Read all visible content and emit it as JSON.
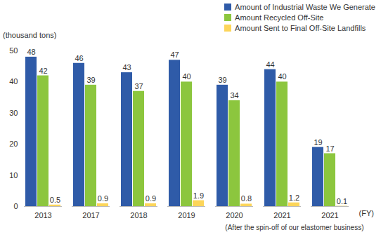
{
  "chart_data": {
    "type": "bar",
    "y_label": "(thousand tons)",
    "x_label": "(FY)",
    "categories": [
      "2013",
      "2017",
      "2018",
      "2019",
      "2020",
      "2021",
      "2021"
    ],
    "series": [
      {
        "name": "Amount of Industrial Waste We Generate",
        "color": "#2f5ba8",
        "values": [
          48,
          46,
          43,
          47,
          39,
          44,
          19
        ]
      },
      {
        "name": "Amount Recycled Off-Site",
        "color": "#8cc63e",
        "values": [
          42,
          39,
          37,
          40,
          34,
          40,
          17
        ]
      },
      {
        "name": "Amount Sent to Final Off-Site Landfills",
        "color": "#fcd55a",
        "values": [
          0.5,
          0.9,
          0.9,
          1.9,
          0.8,
          1.2,
          0.1
        ]
      }
    ],
    "annotations": [
      {
        "text": "(After the spin-off of our elastomer business)",
        "x": 6
      }
    ],
    "ylim": [
      0,
      50
    ],
    "yticks": [
      0,
      10,
      20,
      30,
      40,
      50
    ],
    "legend": "top-right",
    "data_labels": true
  }
}
